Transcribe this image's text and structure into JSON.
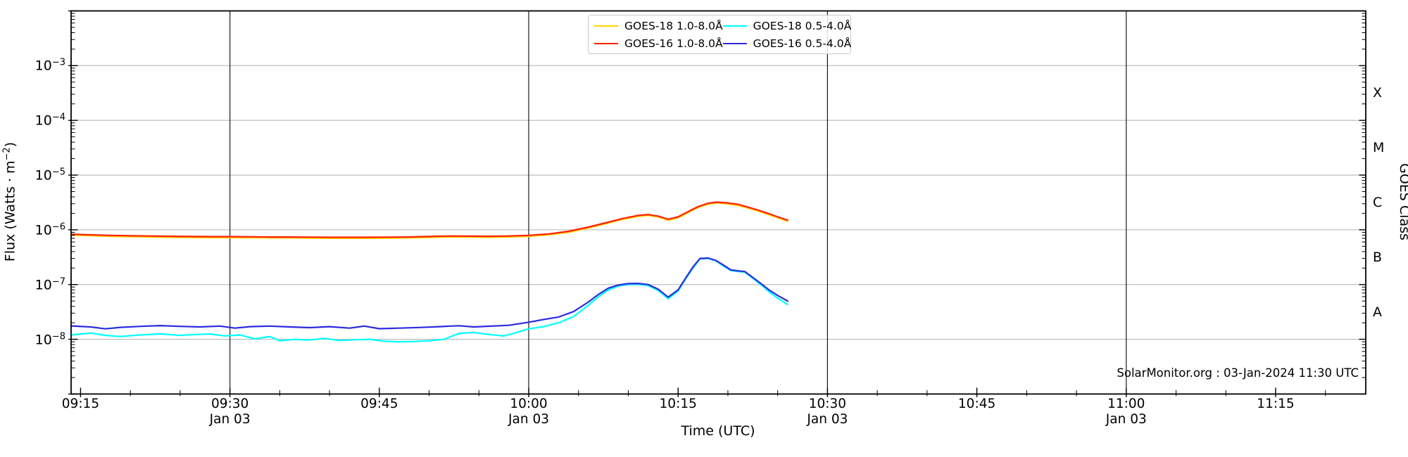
{
  "figure": {
    "watermark": "SolarMonitor.org : 03-Jan-2024 11:30 UTC",
    "background_color": "#ffffff"
  },
  "chart_data": {
    "type": "line",
    "title": "",
    "xlabel": "Time (UTC)",
    "ylabel_prefix": "Flux (Watts · m",
    "ylabel_sup": "−2",
    "ylabel_suffix": ")",
    "right_ylabel": "GOES Class",
    "legend": {
      "position": "upper center",
      "columns": 2,
      "order": "column-major"
    },
    "x_axis": {
      "unit": "minutes after 09:00 UTC on 03-Jan-2024",
      "domain": [
        14.05,
        144.05
      ],
      "major_ticks": [
        {
          "t": 15,
          "label": "09:15"
        },
        {
          "t": 30,
          "label": "09:30"
        },
        {
          "t": 45,
          "label": "09:45"
        },
        {
          "t": 60,
          "label": "10:00"
        },
        {
          "t": 75,
          "label": "10:15"
        },
        {
          "t": 90,
          "label": "10:30"
        },
        {
          "t": 105,
          "label": "10:45"
        },
        {
          "t": 120,
          "label": "11:00"
        },
        {
          "t": 135,
          "label": "11:15"
        }
      ],
      "date_sublabel": "Jan 03",
      "date_line_ticks": [
        30,
        60,
        90,
        120
      ],
      "minor_tick_step_min": 5,
      "day_line_color": "#1a1a1a"
    },
    "y_axis": {
      "scale": "log",
      "domain_exp": [
        -9,
        -2
      ],
      "labeled_decades_exp": [
        -3,
        -4,
        -5,
        -6,
        -7,
        -8
      ],
      "grid": true,
      "gridline_color": "#b8b8b8"
    },
    "goes_classes": [
      {
        "label": "X",
        "center_exp": -3.5
      },
      {
        "label": "M",
        "center_exp": -4.5
      },
      {
        "label": "C",
        "center_exp": -5.5
      },
      {
        "label": "B",
        "center_exp": -6.5
      },
      {
        "label": "A",
        "center_exp": -7.5
      }
    ],
    "series": [
      {
        "name": "GOES-18 1.0-8.0Å",
        "color": "#FFD700",
        "points": [
          [
            14.1,
            8e-07
          ],
          [
            16,
            7.8e-07
          ],
          [
            18,
            7.6e-07
          ],
          [
            20,
            7.5e-07
          ],
          [
            22,
            7.4e-07
          ],
          [
            24,
            7.3e-07
          ],
          [
            26,
            7.25e-07
          ],
          [
            28,
            7.2e-07
          ],
          [
            30,
            7.2e-07
          ],
          [
            32,
            7.15e-07
          ],
          [
            34,
            7.1e-07
          ],
          [
            36,
            7.1e-07
          ],
          [
            38,
            7.05e-07
          ],
          [
            40,
            7e-07
          ],
          [
            42,
            7e-07
          ],
          [
            44,
            7e-07
          ],
          [
            46,
            7.05e-07
          ],
          [
            48,
            7.1e-07
          ],
          [
            50,
            7.25e-07
          ],
          [
            52,
            7.4e-07
          ],
          [
            54,
            7.35e-07
          ],
          [
            56,
            7.3e-07
          ],
          [
            58,
            7.4e-07
          ],
          [
            60,
            7.6e-07
          ],
          [
            62,
            8.1e-07
          ],
          [
            64,
            9e-07
          ],
          [
            66,
            1.08e-06
          ],
          [
            68,
            1.33e-06
          ],
          [
            69.5,
            1.56e-06
          ],
          [
            71,
            1.76e-06
          ],
          [
            72,
            1.83e-06
          ],
          [
            73,
            1.71e-06
          ],
          [
            74,
            1.5e-06
          ],
          [
            75,
            1.65e-06
          ],
          [
            76,
            2.07e-06
          ],
          [
            77,
            2.55e-06
          ],
          [
            78,
            2.94e-06
          ],
          [
            78.8,
            3.08e-06
          ],
          [
            79.8,
            3e-06
          ],
          [
            81,
            2.8e-06
          ],
          [
            82,
            2.5e-06
          ],
          [
            83,
            2.21e-06
          ],
          [
            84,
            1.92e-06
          ],
          [
            85,
            1.65e-06
          ],
          [
            86,
            1.44e-06
          ]
        ]
      },
      {
        "name": "GOES-16 1.0-8.0Å",
        "color": "#FF2000",
        "points": [
          [
            14.1,
            8.3e-07
          ],
          [
            16,
            8.1e-07
          ],
          [
            18,
            7.9e-07
          ],
          [
            20,
            7.8e-07
          ],
          [
            22,
            7.7e-07
          ],
          [
            24,
            7.6e-07
          ],
          [
            26,
            7.55e-07
          ],
          [
            28,
            7.5e-07
          ],
          [
            30,
            7.5e-07
          ],
          [
            32,
            7.45e-07
          ],
          [
            34,
            7.4e-07
          ],
          [
            36,
            7.4e-07
          ],
          [
            38,
            7.35e-07
          ],
          [
            40,
            7.3e-07
          ],
          [
            42,
            7.3e-07
          ],
          [
            44,
            7.3e-07
          ],
          [
            46,
            7.35e-07
          ],
          [
            48,
            7.4e-07
          ],
          [
            50,
            7.55e-07
          ],
          [
            52,
            7.7e-07
          ],
          [
            54,
            7.65e-07
          ],
          [
            56,
            7.6e-07
          ],
          [
            58,
            7.7e-07
          ],
          [
            60,
            7.9e-07
          ],
          [
            62,
            8.4e-07
          ],
          [
            64,
            9.4e-07
          ],
          [
            66,
            1.12e-06
          ],
          [
            68,
            1.38e-06
          ],
          [
            69.5,
            1.62e-06
          ],
          [
            71,
            1.83e-06
          ],
          [
            72,
            1.9e-06
          ],
          [
            73,
            1.78e-06
          ],
          [
            74,
            1.56e-06
          ],
          [
            75,
            1.72e-06
          ],
          [
            76,
            2.15e-06
          ],
          [
            77,
            2.65e-06
          ],
          [
            78,
            3.05e-06
          ],
          [
            78.8,
            3.2e-06
          ],
          [
            79.8,
            3.12e-06
          ],
          [
            81,
            2.92e-06
          ],
          [
            82,
            2.6e-06
          ],
          [
            83,
            2.3e-06
          ],
          [
            84,
            2e-06
          ],
          [
            85,
            1.72e-06
          ],
          [
            86,
            1.5e-06
          ]
        ]
      },
      {
        "name": "GOES-18 0.5-4.0Å",
        "color": "#00FFFF",
        "points": [
          [
            14.1,
            1.2e-08
          ],
          [
            16,
            1.3e-08
          ],
          [
            17.5,
            1.18e-08
          ],
          [
            19,
            1.12e-08
          ],
          [
            21,
            1.2e-08
          ],
          [
            23,
            1.25e-08
          ],
          [
            25,
            1.18e-08
          ],
          [
            26.5,
            1.22e-08
          ],
          [
            28,
            1.25e-08
          ],
          [
            29.5,
            1.15e-08
          ],
          [
            31,
            1.2e-08
          ],
          [
            32.5,
            1.02e-08
          ],
          [
            34,
            1.12e-08
          ],
          [
            35,
            9.4e-09
          ],
          [
            36.5,
            1e-08
          ],
          [
            38,
            9.7e-09
          ],
          [
            39.5,
            1.04e-08
          ],
          [
            41,
            9.5e-09
          ],
          [
            42.5,
            9.8e-09
          ],
          [
            44,
            1e-08
          ],
          [
            45.5,
            9.2e-09
          ],
          [
            47,
            9e-09
          ],
          [
            48.5,
            9.1e-09
          ],
          [
            50,
            9.4e-09
          ],
          [
            51.5,
            1e-08
          ],
          [
            53,
            1.28e-08
          ],
          [
            54.5,
            1.33e-08
          ],
          [
            56,
            1.22e-08
          ],
          [
            57.5,
            1.15e-08
          ],
          [
            58.5,
            1.28e-08
          ],
          [
            60,
            1.55e-08
          ],
          [
            61.5,
            1.7e-08
          ],
          [
            63,
            2e-08
          ],
          [
            64.5,
            2.6e-08
          ],
          [
            66,
            4.2e-08
          ],
          [
            67,
            6e-08
          ],
          [
            68,
            8e-08
          ],
          [
            69,
            9.4e-08
          ],
          [
            70,
            1e-07
          ],
          [
            71,
            1.01e-07
          ],
          [
            72,
            9.6e-08
          ],
          [
            73,
            7.8e-08
          ],
          [
            74,
            5.5e-08
          ],
          [
            75,
            7.6e-08
          ],
          [
            75.8,
            1.3e-07
          ],
          [
            76.5,
            2e-07
          ],
          [
            77.2,
            2.95e-07
          ],
          [
            78,
            3e-07
          ],
          [
            78.8,
            2.7e-07
          ],
          [
            79.5,
            2.2e-07
          ],
          [
            80.3,
            1.8e-07
          ],
          [
            81,
            1.73e-07
          ],
          [
            81.7,
            1.68e-07
          ],
          [
            82.5,
            1.3e-07
          ],
          [
            83.3,
            1e-07
          ],
          [
            84.2,
            7.2e-08
          ],
          [
            85,
            5.6e-08
          ],
          [
            86,
            4.3e-08
          ]
        ]
      },
      {
        "name": "GOES-16 0.5-4.0Å",
        "color": "#2B2BDF",
        "points": [
          [
            14.1,
            1.75e-08
          ],
          [
            16,
            1.68e-08
          ],
          [
            17.5,
            1.55e-08
          ],
          [
            19,
            1.65e-08
          ],
          [
            21,
            1.72e-08
          ],
          [
            23,
            1.78e-08
          ],
          [
            25,
            1.72e-08
          ],
          [
            27,
            1.68e-08
          ],
          [
            29,
            1.74e-08
          ],
          [
            30.5,
            1.6e-08
          ],
          [
            32,
            1.7e-08
          ],
          [
            34,
            1.74e-08
          ],
          [
            36,
            1.68e-08
          ],
          [
            38,
            1.63e-08
          ],
          [
            40,
            1.7e-08
          ],
          [
            42,
            1.6e-08
          ],
          [
            43.5,
            1.74e-08
          ],
          [
            45,
            1.56e-08
          ],
          [
            47,
            1.6e-08
          ],
          [
            49,
            1.64e-08
          ],
          [
            51,
            1.7e-08
          ],
          [
            53,
            1.77e-08
          ],
          [
            54.5,
            1.68e-08
          ],
          [
            56,
            1.73e-08
          ],
          [
            58,
            1.8e-08
          ],
          [
            60,
            2.05e-08
          ],
          [
            61.5,
            2.3e-08
          ],
          [
            63,
            2.55e-08
          ],
          [
            64.5,
            3.2e-08
          ],
          [
            66,
            4.8e-08
          ],
          [
            67,
            6.6e-08
          ],
          [
            68,
            8.6e-08
          ],
          [
            69,
            9.8e-08
          ],
          [
            70,
            1.04e-07
          ],
          [
            71,
            1.05e-07
          ],
          [
            72,
            1e-07
          ],
          [
            73,
            8.2e-08
          ],
          [
            74,
            5.9e-08
          ],
          [
            75,
            8e-08
          ],
          [
            75.8,
            1.35e-07
          ],
          [
            76.5,
            2.1e-07
          ],
          [
            77.2,
            3e-07
          ],
          [
            78,
            3.05e-07
          ],
          [
            78.8,
            2.75e-07
          ],
          [
            79.5,
            2.3e-07
          ],
          [
            80.3,
            1.85e-07
          ],
          [
            81,
            1.78e-07
          ],
          [
            81.7,
            1.73e-07
          ],
          [
            82.5,
            1.35e-07
          ],
          [
            83.3,
            1.05e-07
          ],
          [
            84.2,
            7.8e-08
          ],
          [
            85,
            6.3e-08
          ],
          [
            86,
            5e-08
          ]
        ]
      }
    ]
  }
}
